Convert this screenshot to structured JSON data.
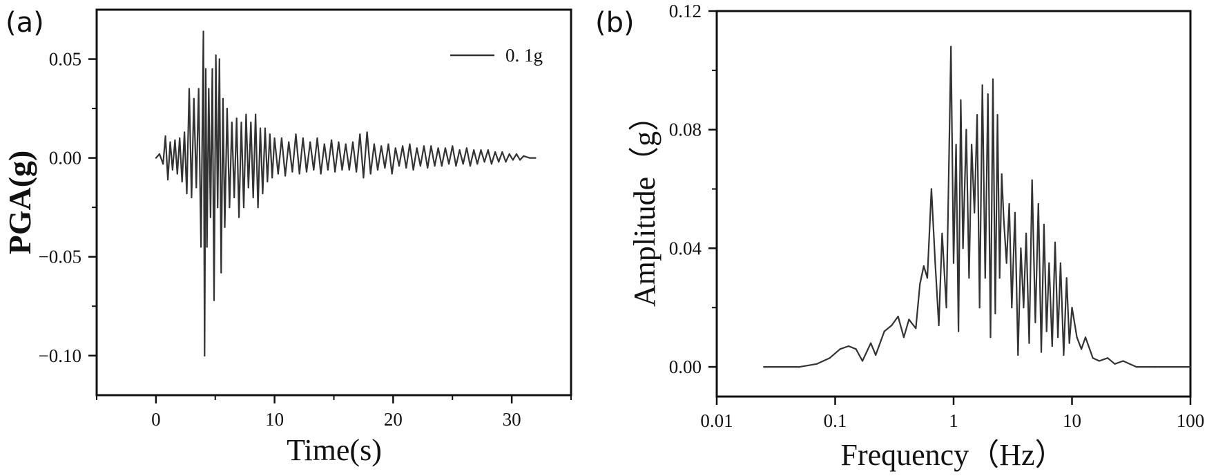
{
  "panels": {
    "a": {
      "label": "(a)"
    },
    "b": {
      "label": "(b)"
    }
  },
  "chart_data": [
    {
      "type": "line",
      "panel": "(a)",
      "title": "",
      "xlabel": "Time(s)",
      "ylabel": "PGA(g)",
      "xlim": [
        -5,
        35
      ],
      "ylim": [
        -0.12,
        0.075
      ],
      "xticks": [
        0,
        10,
        20,
        30
      ],
      "xtick_labels": [
        "0",
        "10",
        "20",
        "30"
      ],
      "yticks": [
        -0.1,
        -0.05,
        0.0,
        0.05
      ],
      "ytick_labels": [
        "−0.10",
        "−0.05",
        "0.00",
        "0.05"
      ],
      "grid": false,
      "legend": {
        "position": "top-right",
        "entries": [
          "0. 1g"
        ]
      },
      "series": [
        {
          "name": "0. 1g",
          "x": [
            0.0,
            0.3,
            0.6,
            0.8,
            1.0,
            1.2,
            1.4,
            1.6,
            1.8,
            2.0,
            2.2,
            2.4,
            2.6,
            2.8,
            3.0,
            3.2,
            3.4,
            3.6,
            3.8,
            4.0,
            4.1,
            4.2,
            4.3,
            4.45,
            4.6,
            4.75,
            4.9,
            5.05,
            5.2,
            5.35,
            5.5,
            5.65,
            5.8,
            6.0,
            6.2,
            6.4,
            6.6,
            6.8,
            7.0,
            7.2,
            7.4,
            7.6,
            7.8,
            8.0,
            8.2,
            8.4,
            8.6,
            8.8,
            9.0,
            9.2,
            9.4,
            9.6,
            9.8,
            10.0,
            10.3,
            10.6,
            10.9,
            11.2,
            11.5,
            11.8,
            12.1,
            12.4,
            12.7,
            13.0,
            13.3,
            13.6,
            13.9,
            14.2,
            14.5,
            14.8,
            15.1,
            15.4,
            15.7,
            16.0,
            16.3,
            16.6,
            16.9,
            17.2,
            17.5,
            17.8,
            18.1,
            18.4,
            18.7,
            19.0,
            19.3,
            19.6,
            19.9,
            20.2,
            20.5,
            20.8,
            21.1,
            21.4,
            21.7,
            22.0,
            22.3,
            22.6,
            22.9,
            23.2,
            23.5,
            23.8,
            24.1,
            24.4,
            24.7,
            25.0,
            25.3,
            25.6,
            25.9,
            26.2,
            26.5,
            26.8,
            27.1,
            27.4,
            27.7,
            28.0,
            28.3,
            28.6,
            28.9,
            29.2,
            29.5,
            29.8,
            30.1,
            30.4,
            30.7,
            31.0,
            31.5,
            32.0
          ],
          "y": [
            0.0,
            0.002,
            -0.003,
            0.011,
            -0.011,
            0.008,
            -0.006,
            0.009,
            -0.008,
            0.01,
            -0.012,
            0.013,
            -0.018,
            0.035,
            -0.02,
            0.03,
            -0.015,
            0.035,
            -0.045,
            0.064,
            -0.1,
            0.045,
            -0.045,
            0.035,
            -0.03,
            0.045,
            -0.072,
            0.052,
            -0.025,
            0.05,
            -0.058,
            0.03,
            -0.035,
            0.025,
            -0.025,
            0.018,
            -0.02,
            0.02,
            -0.03,
            0.018,
            -0.025,
            0.022,
            -0.015,
            0.018,
            -0.02,
            0.022,
            -0.025,
            0.015,
            -0.018,
            0.015,
            -0.012,
            0.012,
            -0.01,
            0.01,
            -0.008,
            0.01,
            -0.009,
            0.008,
            -0.007,
            0.012,
            -0.008,
            0.01,
            -0.007,
            0.008,
            -0.006,
            0.01,
            -0.008,
            0.007,
            -0.006,
            0.009,
            -0.007,
            0.008,
            -0.006,
            0.007,
            -0.006,
            0.008,
            -0.007,
            0.012,
            -0.01,
            0.013,
            -0.008,
            0.007,
            -0.006,
            0.006,
            -0.005,
            0.007,
            -0.008,
            0.005,
            -0.004,
            0.006,
            -0.005,
            0.007,
            -0.006,
            0.005,
            -0.004,
            0.006,
            -0.005,
            0.006,
            -0.004,
            0.005,
            -0.004,
            0.005,
            -0.003,
            0.006,
            -0.004,
            0.004,
            -0.003,
            0.005,
            -0.004,
            0.004,
            -0.003,
            0.004,
            -0.002,
            0.004,
            -0.003,
            0.003,
            -0.002,
            0.003,
            -0.002,
            0.002,
            -0.001,
            0.002,
            -0.001,
            0.001,
            0.0,
            0.0
          ]
        }
      ]
    },
    {
      "type": "line",
      "panel": "(b)",
      "title": "",
      "xlabel": "Frequency（Hz）",
      "ylabel": "Amplitude（g）",
      "xscale": "log",
      "xlim": [
        0.01,
        100
      ],
      "ylim": [
        -0.01,
        0.12
      ],
      "xticks": [
        0.01,
        0.1,
        1,
        10,
        100
      ],
      "xtick_labels": [
        "0.01",
        "0.1",
        "1",
        "10",
        "100"
      ],
      "yticks": [
        0.0,
        0.04,
        0.08,
        0.12
      ],
      "ytick_labels": [
        "0.00",
        "0.04",
        "0.08",
        "0.12"
      ],
      "grid": false,
      "series": [
        {
          "x": [
            0.025,
            0.05,
            0.07,
            0.09,
            0.11,
            0.13,
            0.15,
            0.17,
            0.2,
            0.22,
            0.26,
            0.3,
            0.34,
            0.38,
            0.42,
            0.48,
            0.52,
            0.56,
            0.6,
            0.65,
            0.7,
            0.75,
            0.8,
            0.87,
            0.95,
            1.0,
            1.05,
            1.1,
            1.15,
            1.2,
            1.28,
            1.35,
            1.42,
            1.5,
            1.58,
            1.66,
            1.75,
            1.85,
            1.95,
            2.05,
            2.15,
            2.25,
            2.35,
            2.45,
            2.55,
            2.65,
            2.8,
            2.95,
            3.1,
            3.3,
            3.5,
            3.7,
            3.9,
            4.1,
            4.35,
            4.6,
            4.9,
            5.2,
            5.5,
            5.8,
            6.1,
            6.4,
            6.8,
            7.2,
            7.6,
            8.0,
            8.5,
            9.0,
            9.5,
            10.0,
            11.0,
            12.0,
            13.0,
            15.0,
            17.0,
            20.0,
            23.0,
            27.0,
            35.0,
            50.0,
            100.0
          ],
          "y": [
            0.0,
            0.0,
            0.001,
            0.003,
            0.006,
            0.007,
            0.006,
            0.002,
            0.008,
            0.004,
            0.012,
            0.014,
            0.017,
            0.01,
            0.016,
            0.013,
            0.028,
            0.034,
            0.03,
            0.06,
            0.035,
            0.014,
            0.045,
            0.02,
            0.108,
            0.035,
            0.075,
            0.012,
            0.09,
            0.04,
            0.08,
            0.03,
            0.075,
            0.052,
            0.085,
            0.02,
            0.095,
            0.03,
            0.092,
            0.01,
            0.097,
            0.018,
            0.085,
            0.03,
            0.065,
            0.05,
            0.035,
            0.055,
            0.02,
            0.052,
            0.004,
            0.04,
            0.02,
            0.045,
            0.008,
            0.063,
            0.015,
            0.055,
            0.005,
            0.048,
            0.012,
            0.035,
            0.007,
            0.042,
            0.01,
            0.035,
            0.004,
            0.03,
            0.008,
            0.02,
            0.01,
            0.006,
            0.01,
            0.003,
            0.002,
            0.003,
            0.001,
            0.002,
            0.0,
            0.0,
            0.0
          ]
        }
      ]
    }
  ]
}
